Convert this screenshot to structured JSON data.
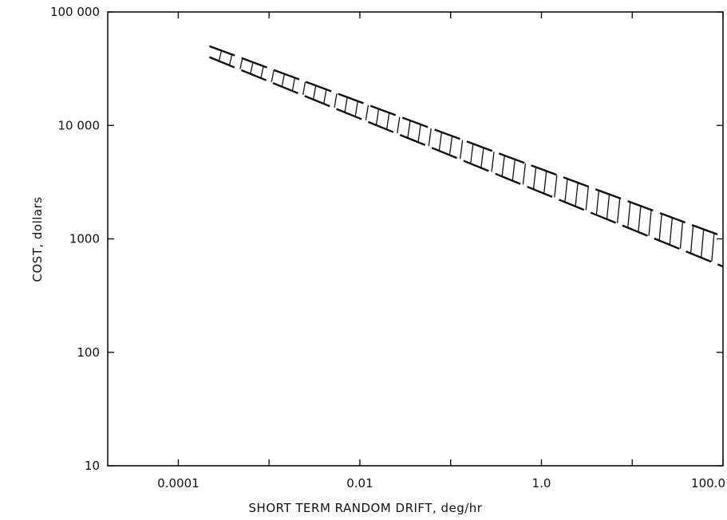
{
  "chart_data": {
    "type": "area",
    "title": "",
    "xlabel": "SHORT TERM RANDOM DRIFT, deg/hr",
    "ylabel": "COST, dollars",
    "x_scale": "log",
    "y_scale": "log",
    "xlim": [
      1.67e-05,
      100.0
    ],
    "ylim": [
      10,
      100000
    ],
    "grid": false,
    "legend": "none",
    "x_ticks": [
      {
        "value": 0.0001,
        "label": "0.0001"
      },
      {
        "value": 0.01,
        "label": "0.01"
      },
      {
        "value": 1.0,
        "label": "1.0"
      },
      {
        "value": 100.0,
        "label": "100.0"
      }
    ],
    "x_minor_ticks": [
      0.001,
      0.1,
      10.0
    ],
    "y_ticks": [
      {
        "value": 10,
        "label": "10"
      },
      {
        "value": 100,
        "label": "100"
      },
      {
        "value": 1000,
        "label": "1000"
      },
      {
        "value": 10000,
        "label": "10 000"
      },
      {
        "value": 100000,
        "label": "100 000"
      }
    ],
    "series": [
      {
        "style": "dashed-band-hatched",
        "color": "#111111",
        "x": [
          0.00022,
          100.0
        ],
        "upper": [
          50000,
          1050.0
        ],
        "lower": [
          40000,
          570
        ]
      }
    ]
  }
}
